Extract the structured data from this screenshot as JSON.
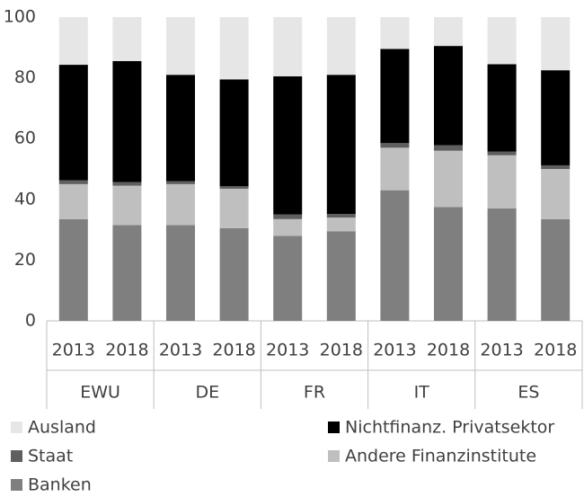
{
  "chart_data": {
    "type": "stacked_bar",
    "categories": [
      "2013",
      "2018",
      "2013",
      "2018",
      "2013",
      "2018",
      "2013",
      "2018",
      "2013",
      "2018"
    ],
    "groups": [
      "EWU",
      "DE",
      "FR",
      "IT",
      "ES"
    ],
    "series": [
      {
        "name": "Banken",
        "color": "#7f7f7f",
        "values": [
          33.5,
          31.5,
          31.5,
          30.5,
          28,
          29.5,
          43,
          37.5,
          37,
          33.5
        ]
      },
      {
        "name": "Andere Finanzinstitute",
        "color": "#bfbfbf",
        "values": [
          11.5,
          13,
          13.5,
          13,
          5.5,
          4.5,
          14,
          18.5,
          17.5,
          16.5
        ]
      },
      {
        "name": "Staat",
        "color": "#5f5f5f",
        "values": [
          1.3,
          1.2,
          1,
          0.8,
          1.5,
          1.2,
          1.5,
          1.8,
          1.2,
          1.2
        ]
      },
      {
        "name": "Nichtfinanz. Privatsektor",
        "color": "#000000",
        "values": [
          38,
          39.8,
          35,
          35.2,
          45.5,
          45.8,
          31,
          32.7,
          28.8,
          31.3
        ]
      },
      {
        "name": "Ausland",
        "color": "#e6e6e6",
        "values": [
          15.7,
          14.5,
          19,
          20.5,
          19.5,
          19,
          10.5,
          9.5,
          15.5,
          17.5
        ]
      }
    ],
    "ylim": [
      0,
      100
    ],
    "yticks": [
      0,
      20,
      40,
      60,
      80,
      100
    ],
    "grid": false,
    "legend": "bottom"
  }
}
